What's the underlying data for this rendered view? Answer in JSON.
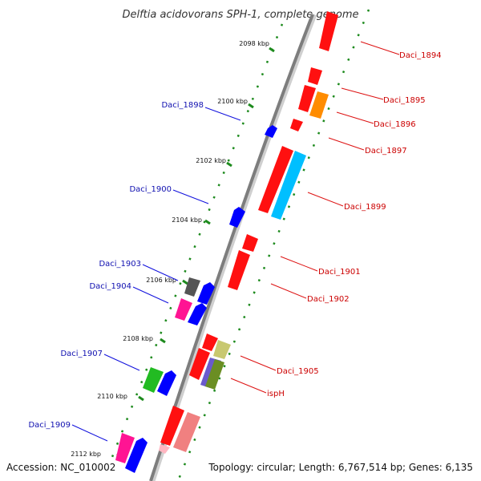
{
  "title": "Delftia acidovorans SPH-1, complete genome",
  "footer": {
    "accession": "Accession: NC_010002",
    "topology": "Topology: circular; Length: 6,767,514 bp; Genes: 6,135"
  },
  "colors": {
    "backbone": "#8c8c8c",
    "tick": "#1d8a1d",
    "label_left": "#1010b0",
    "label_right": "#cc0000"
  },
  "ticks": [
    {
      "label": "2098 kbp"
    },
    {
      "label": "2100 kbp"
    },
    {
      "label": "2102 kbp"
    },
    {
      "label": "2104 kbp"
    },
    {
      "label": "2106 kbp"
    },
    {
      "label": "2108 kbp"
    },
    {
      "label": "2110 kbp"
    },
    {
      "label": "2112 kbp"
    }
  ],
  "genes": [
    {
      "name": "Daci_1894",
      "color": "#ff1010"
    },
    {
      "name": "Daci_1895",
      "color": "#ff1010"
    },
    {
      "name": "Daci_1896",
      "color": "#ff8c00"
    },
    {
      "name": "Daci_1897",
      "color": "#ff1010"
    },
    {
      "name": "Daci_1898",
      "color": "#0000ff"
    },
    {
      "name": "Daci_1899",
      "color": "#ff1010",
      "color2": "#00bfff"
    },
    {
      "name": "Daci_1900",
      "color": "#0000ff"
    },
    {
      "name": "Daci_1901",
      "color": "#ff1010"
    },
    {
      "name": "Daci_1902",
      "color": "#ff1010"
    },
    {
      "name": "Daci_1903",
      "color": "#555555"
    },
    {
      "name": "Daci_1904",
      "color": "#ff1493"
    },
    {
      "name": "Daci_1905",
      "color": "#ff1010",
      "color2": "#c8c870"
    },
    {
      "name": "ispH",
      "color": "#6b8e23",
      "color2": "#6a5acd"
    },
    {
      "name": "Daci_1907",
      "color": "#22bb22"
    },
    {
      "name": "Daci_1909",
      "color": "#ff1493"
    }
  ]
}
